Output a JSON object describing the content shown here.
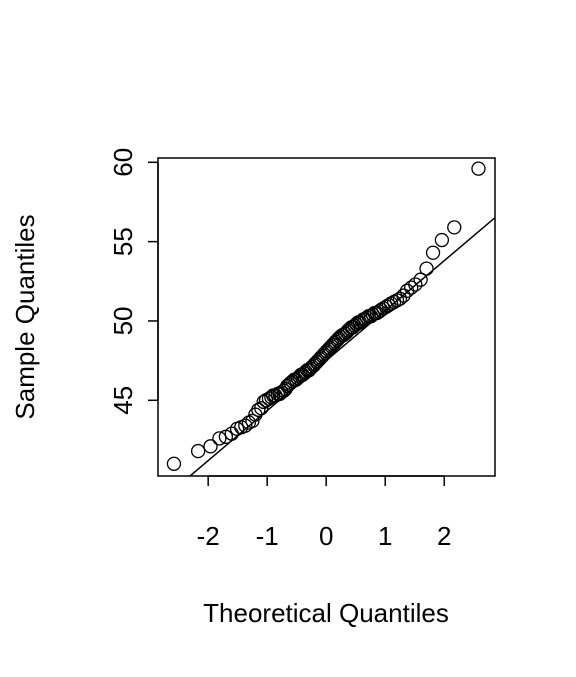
{
  "chart_data": {
    "type": "scatter",
    "xlabel": "Theoretical Quantiles",
    "ylabel": "Sample Quantiles",
    "x": [
      -2.58,
      -2.17,
      -1.96,
      -1.81,
      -1.7,
      -1.6,
      -1.51,
      -1.44,
      -1.37,
      -1.31,
      -1.25,
      -1.2,
      -1.15,
      -1.1,
      -1.06,
      -1.02,
      -0.97,
      -0.93,
      -0.9,
      -0.86,
      -0.82,
      -0.79,
      -0.76,
      -0.72,
      -0.69,
      -0.66,
      -0.63,
      -0.6,
      -0.57,
      -0.54,
      -0.51,
      -0.48,
      -0.45,
      -0.43,
      -0.4,
      -0.37,
      -0.35,
      -0.32,
      -0.29,
      -0.27,
      -0.24,
      -0.21,
      -0.19,
      -0.16,
      -0.14,
      -0.11,
      -0.09,
      -0.06,
      -0.04,
      -0.01,
      0.01,
      0.04,
      0.06,
      0.09,
      0.11,
      0.14,
      0.16,
      0.19,
      0.21,
      0.24,
      0.27,
      0.29,
      0.32,
      0.35,
      0.37,
      0.4,
      0.43,
      0.45,
      0.48,
      0.51,
      0.54,
      0.57,
      0.6,
      0.63,
      0.66,
      0.69,
      0.72,
      0.76,
      0.79,
      0.82,
      0.86,
      0.9,
      0.93,
      0.97,
      1.02,
      1.06,
      1.1,
      1.15,
      1.2,
      1.25,
      1.31,
      1.37,
      1.44,
      1.51,
      1.6,
      1.7,
      1.81,
      1.96,
      2.17,
      2.58
    ],
    "values": [
      41.0,
      41.8,
      42.1,
      42.6,
      42.7,
      42.9,
      43.2,
      43.3,
      43.4,
      43.6,
      43.7,
      44.1,
      44.4,
      44.5,
      44.9,
      45.0,
      45.1,
      45.2,
      45.3,
      45.3,
      45.4,
      45.4,
      45.5,
      45.6,
      45.7,
      45.9,
      46.0,
      46.1,
      46.2,
      46.3,
      46.3,
      46.4,
      46.5,
      46.6,
      46.6,
      46.7,
      46.8,
      46.9,
      46.9,
      47.0,
      47.1,
      47.2,
      47.3,
      47.4,
      47.5,
      47.6,
      47.7,
      47.8,
      47.9,
      48.0,
      48.1,
      48.2,
      48.3,
      48.4,
      48.5,
      48.6,
      48.7,
      48.8,
      48.9,
      49.0,
      49.1,
      49.1,
      49.2,
      49.3,
      49.4,
      49.5,
      49.6,
      49.6,
      49.7,
      49.8,
      49.9,
      49.9,
      50.0,
      50.1,
      50.1,
      50.2,
      50.3,
      50.3,
      50.4,
      50.5,
      50.5,
      50.6,
      50.7,
      50.8,
      50.9,
      51.0,
      51.1,
      51.2,
      51.3,
      51.4,
      51.6,
      51.9,
      52.1,
      52.3,
      52.6,
      53.3,
      54.3,
      55.1,
      55.9,
      59.6
    ],
    "color": "#000000",
    "qqline": {
      "intercept": 47.5,
      "slope": 3.15
    },
    "xlim": [
      -2.85,
      2.86
    ],
    "ylim": [
      40.23,
      60.27
    ],
    "xticks": [
      -2,
      -1,
      0,
      1,
      2
    ],
    "yticks": [
      45,
      50,
      55,
      60
    ]
  }
}
